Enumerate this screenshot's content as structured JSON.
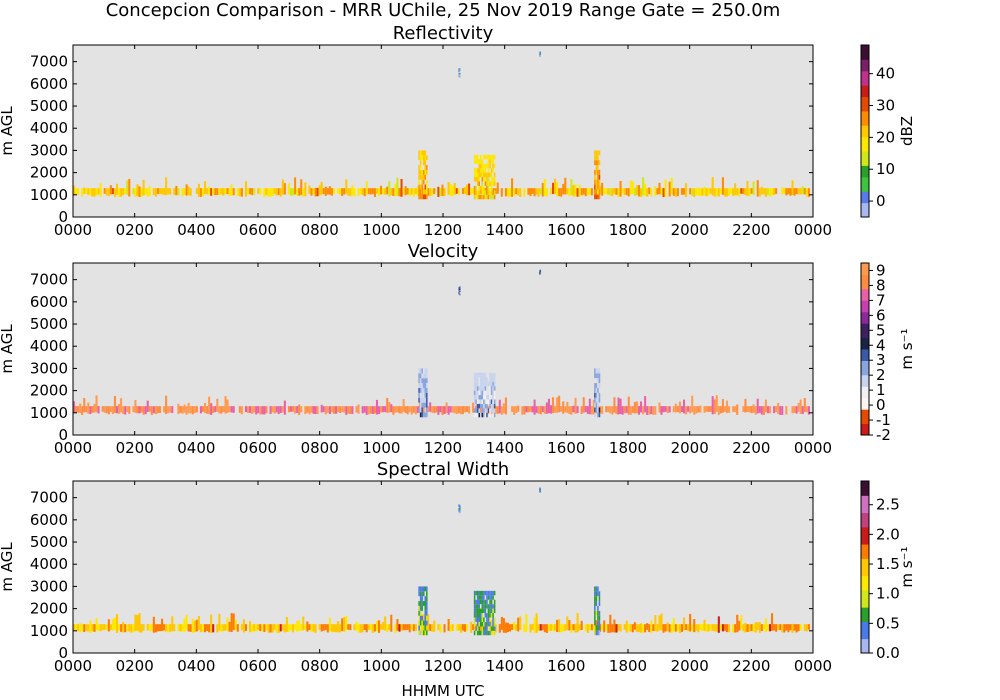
{
  "suptitle": "Concepcion Comparison - MRR UChile, 25 Nov 2019 Range Gate = 250.0m",
  "xlabel": "HHMM UTC",
  "colors": {
    "background": "#ffffff",
    "plot_bg": "#e3e3e3",
    "refl_cmap": [
      "#a9b7f0",
      "#5a7ae8",
      "#3dc43d",
      "#2aa02a",
      "#cfe81a",
      "#ffe800",
      "#ffc800",
      "#ff8c00",
      "#e64a00",
      "#cc1a1a",
      "#c0308c",
      "#7a1f6a",
      "#3d0f33"
    ],
    "vel_cmap": [
      "#cc1a1a",
      "#e64a00",
      "#fff5f0",
      "#f0f0f5",
      "#c8d4ee",
      "#8aa4dd",
      "#3a5aa8",
      "#1a2446",
      "#3c2060",
      "#8a2a9a",
      "#c840b0",
      "#e860a8",
      "#ff8c40",
      "#ff9a50"
    ],
    "sw_cmap": [
      "#a9b7f0",
      "#4a7ae8",
      "#2aa02a",
      "#cfe81a",
      "#ffe800",
      "#ffc800",
      "#ff7a00",
      "#cc1a1a",
      "#c04080",
      "#d070c0",
      "#3d0f33"
    ]
  },
  "chart_data": [
    {
      "type": "heatmap",
      "title": "Reflectivity",
      "ylabel": "m AGL",
      "xlim": [
        0,
        2400
      ],
      "ylim": [
        0,
        7750
      ],
      "x_tick_labels": [
        "0000",
        "0200",
        "0400",
        "0600",
        "0800",
        "1000",
        "1200",
        "1400",
        "1600",
        "1800",
        "2000",
        "2200",
        "0000"
      ],
      "y_ticks": [
        0,
        1000,
        2000,
        3000,
        4000,
        5000,
        6000,
        7000
      ],
      "colorbar": {
        "label": "dBZ",
        "range": [
          -5,
          49
        ],
        "ticks": [
          0,
          10,
          20,
          30,
          40
        ]
      },
      "features": [
        {
          "kind": "band",
          "x": [
            0,
            2390
          ],
          "y": [
            900,
            1300
          ],
          "value": 22,
          "note": "low-level echo band"
        },
        {
          "kind": "cell",
          "x": [
            1120,
            1150
          ],
          "y": [
            800,
            3000
          ],
          "value": 20
        },
        {
          "kind": "cell",
          "x": [
            1300,
            1370
          ],
          "y": [
            800,
            2800
          ],
          "value": 18
        },
        {
          "kind": "cell",
          "x": [
            1690,
            1710
          ],
          "y": [
            800,
            3000
          ],
          "value": 22
        },
        {
          "kind": "cell",
          "x": [
            1250,
            1256
          ],
          "y": [
            6300,
            6700
          ],
          "value": 0
        },
        {
          "kind": "cell",
          "x": [
            1512,
            1516
          ],
          "y": [
            7250,
            7450
          ],
          "value": 0
        }
      ]
    },
    {
      "type": "heatmap",
      "title": "Velocity",
      "ylabel": "m AGL",
      "xlim": [
        0,
        2400
      ],
      "ylim": [
        0,
        7750
      ],
      "x_tick_labels": [
        "0000",
        "0200",
        "0400",
        "0600",
        "0800",
        "1000",
        "1200",
        "1400",
        "1600",
        "1800",
        "2000",
        "2200",
        "0000"
      ],
      "y_ticks": [
        0,
        1000,
        2000,
        3000,
        4000,
        5000,
        6000,
        7000
      ],
      "colorbar": {
        "label": "m s⁻¹",
        "range": [
          -2,
          9.5
        ],
        "ticks": [
          -2,
          -1,
          0,
          1,
          2,
          3,
          4,
          5,
          6,
          7,
          8,
          9
        ]
      },
      "features": [
        {
          "kind": "band",
          "x": [
            0,
            2390
          ],
          "y": [
            900,
            1300
          ],
          "value": 8.5,
          "note": "low-level band"
        },
        {
          "kind": "cell",
          "x": [
            1120,
            1150
          ],
          "y": [
            800,
            3000
          ],
          "value": 2
        },
        {
          "kind": "cell",
          "x": [
            1300,
            1370
          ],
          "y": [
            800,
            2800
          ],
          "value": 1.5
        },
        {
          "kind": "cell",
          "x": [
            1690,
            1710
          ],
          "y": [
            800,
            3000
          ],
          "value": 2
        },
        {
          "kind": "cell",
          "x": [
            1250,
            1256
          ],
          "y": [
            6300,
            6700
          ],
          "value": 3
        },
        {
          "kind": "cell",
          "x": [
            1512,
            1516
          ],
          "y": [
            7250,
            7450
          ],
          "value": 3
        }
      ]
    },
    {
      "type": "heatmap",
      "title": "Spectral Width",
      "ylabel": "m AGL",
      "xlabel": "HHMM UTC",
      "xlim": [
        0,
        2400
      ],
      "ylim": [
        0,
        7750
      ],
      "x_tick_labels": [
        "0000",
        "0200",
        "0400",
        "0600",
        "0800",
        "1000",
        "1200",
        "1400",
        "1600",
        "1800",
        "2000",
        "2200",
        "0000"
      ],
      "y_ticks": [
        0,
        1000,
        2000,
        3000,
        4000,
        5000,
        6000,
        7000
      ],
      "colorbar": {
        "label": "m s⁻¹",
        "range": [
          0,
          2.9
        ],
        "ticks": [
          0.0,
          0.5,
          1.0,
          1.5,
          2.0,
          2.5
        ]
      },
      "features": [
        {
          "kind": "band",
          "x": [
            0,
            2390
          ],
          "y": [
            900,
            1300
          ],
          "value": 1.5,
          "note": "low-level band"
        },
        {
          "kind": "cell",
          "x": [
            1120,
            1150
          ],
          "y": [
            800,
            3000
          ],
          "value": 0.5
        },
        {
          "kind": "cell",
          "x": [
            1300,
            1370
          ],
          "y": [
            800,
            2800
          ],
          "value": 0.5
        },
        {
          "kind": "cell",
          "x": [
            1690,
            1710
          ],
          "y": [
            800,
            3000
          ],
          "value": 0.5
        },
        {
          "kind": "cell",
          "x": [
            1250,
            1256
          ],
          "y": [
            6300,
            6700
          ],
          "value": 0.3
        },
        {
          "kind": "cell",
          "x": [
            1512,
            1516
          ],
          "y": [
            7250,
            7450
          ],
          "value": 0.3
        }
      ]
    }
  ]
}
